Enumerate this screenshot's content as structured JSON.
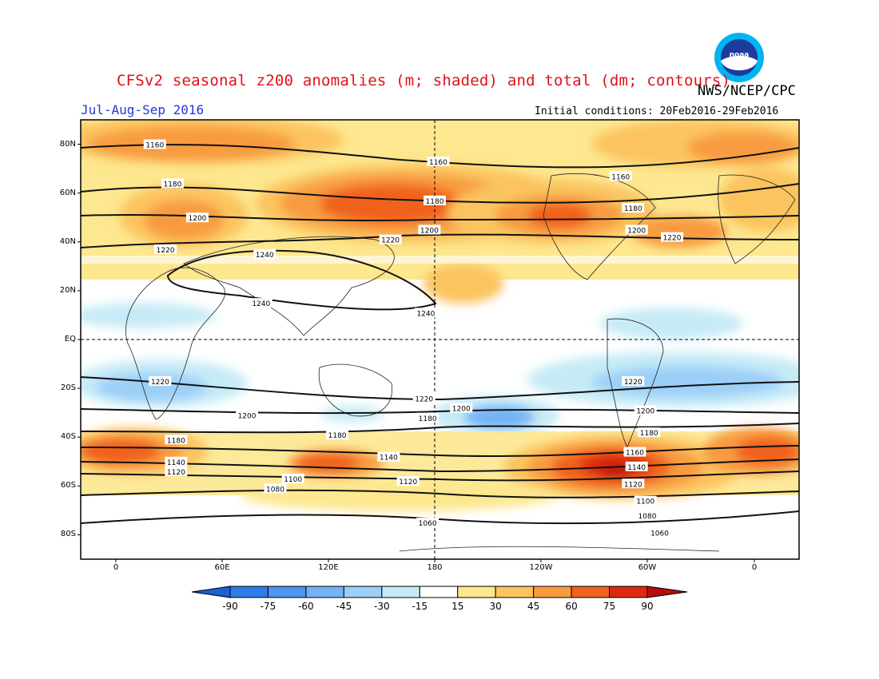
{
  "header": {
    "title": "CFSv2 seasonal z200 anomalies (m; shaded) and total (dm; contours)",
    "agency": "NWS/NCEP/CPC",
    "period": "Jul-Aug-Sep 2016",
    "initial_conditions": "Initial conditions: 20Feb2016-29Feb2016",
    "logo_icon": "noaa-logo-icon"
  },
  "axes": {
    "lat_ticks": [
      "80N",
      "60N",
      "40N",
      "20N",
      "EQ",
      "20S",
      "40S",
      "60S",
      "80S"
    ],
    "lon_ticks": [
      "0",
      "60E",
      "120E",
      "180",
      "120W",
      "60W",
      "0"
    ]
  },
  "colorbar": {
    "ticks": [
      "-90",
      "-75",
      "-60",
      "-45",
      "-30",
      "-15",
      "15",
      "30",
      "45",
      "60",
      "75",
      "90"
    ],
    "colors": [
      "#1c5fd6",
      "#2f7be8",
      "#4d95f0",
      "#74b3f5",
      "#9ccff8",
      "#c6ebf7",
      "#ffffff",
      "#fde78f",
      "#fbc45f",
      "#f89b3f",
      "#f0621f",
      "#dd2a10",
      "#b80d0d"
    ]
  },
  "chart_data": {
    "type": "heatmap",
    "title": "CFSv2 seasonal z200 anomalies (m; shaded) and total (dm; contours)",
    "valid_period": "Jul-Aug-Sep 2016",
    "anomaly_units": "m",
    "contour_units": "dm",
    "contour_labels": [
      {
        "value": 1160,
        "lat": 80,
        "lon": 22
      },
      {
        "value": 1160,
        "lat": 73,
        "lon": -178
      },
      {
        "value": 1160,
        "lat": 67,
        "lon": -75
      },
      {
        "value": 1180,
        "lat": 64,
        "lon": 32
      },
      {
        "value": 1180,
        "lat": 57,
        "lon": 180
      },
      {
        "value": 1180,
        "lat": 54,
        "lon": -68
      },
      {
        "value": 1200,
        "lat": 50,
        "lon": 46
      },
      {
        "value": 1200,
        "lat": 45,
        "lon": 177
      },
      {
        "value": 1200,
        "lat": 45,
        "lon": -66
      },
      {
        "value": 1220,
        "lat": 37,
        "lon": 28
      },
      {
        "value": 1220,
        "lat": 41,
        "lon": 155
      },
      {
        "value": 1220,
        "lat": 42,
        "lon": -46
      },
      {
        "value": 1240,
        "lat": 35,
        "lon": 84
      },
      {
        "value": 1240,
        "lat": 15,
        "lon": 82
      },
      {
        "value": 1240,
        "lat": 11,
        "lon": 175
      },
      {
        "value": 1220,
        "lat": -17,
        "lon": 25
      },
      {
        "value": 1220,
        "lat": -24,
        "lon": 174
      },
      {
        "value": 1220,
        "lat": -17,
        "lon": -68
      },
      {
        "value": 1200,
        "lat": -31,
        "lon": 74
      },
      {
        "value": 1200,
        "lat": -28,
        "lon": -165
      },
      {
        "value": 1200,
        "lat": -29,
        "lon": -61
      },
      {
        "value": 1180,
        "lat": -41,
        "lon": 34
      },
      {
        "value": 1180,
        "lat": -39,
        "lon": 125
      },
      {
        "value": 1180,
        "lat": -32,
        "lon": 176
      },
      {
        "value": 1180,
        "lat": -38,
        "lon": -59
      },
      {
        "value": 1160,
        "lat": -46,
        "lon": -67
      },
      {
        "value": 1140,
        "lat": -50,
        "lon": 34
      },
      {
        "value": 1140,
        "lat": -48,
        "lon": 154
      },
      {
        "value": 1140,
        "lat": -52,
        "lon": -66
      },
      {
        "value": 1120,
        "lat": -54,
        "lon": 34
      },
      {
        "value": 1120,
        "lat": -58,
        "lon": 165
      },
      {
        "value": 1120,
        "lat": -59,
        "lon": -68
      },
      {
        "value": 1100,
        "lat": -57,
        "lon": 100
      },
      {
        "value": 1100,
        "lat": -66,
        "lon": -61
      },
      {
        "value": 1080,
        "lat": -61,
        "lon": 90
      },
      {
        "value": 1080,
        "lat": -72,
        "lon": -60
      },
      {
        "value": 1060,
        "lat": -75,
        "lon": 176
      },
      {
        "value": 1060,
        "lat": -79,
        "lon": -53
      }
    ],
    "anomaly_centers_m": [
      {
        "lat": 80,
        "lon": 40,
        "value": 60
      },
      {
        "lat": 55,
        "lon": 150,
        "value": 60
      },
      {
        "lat": 48,
        "lon": -110,
        "value": 60
      },
      {
        "lat": -50,
        "lon": 0,
        "value": 75
      },
      {
        "lat": -55,
        "lon": -65,
        "value": 90
      },
      {
        "lat": -32,
        "lon": -150,
        "value": -45
      },
      {
        "lat": -20,
        "lon": 40,
        "value": -30
      }
    ]
  }
}
